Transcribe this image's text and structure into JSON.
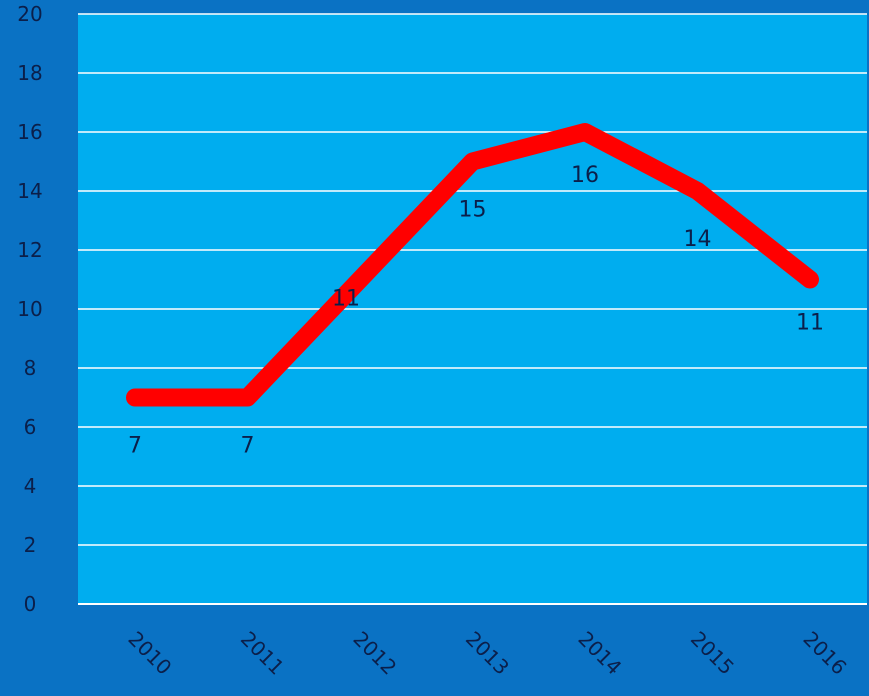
{
  "chart_data": {
    "type": "line",
    "title": "",
    "xlabel": "",
    "ylabel": "",
    "categories": [
      "2010",
      "2011",
      "2012",
      "2013",
      "2014",
      "2015",
      "2016"
    ],
    "series": [
      {
        "values": [
          7,
          7,
          11,
          15,
          16,
          14,
          11
        ]
      }
    ],
    "data_labels": [
      "7",
      "7",
      "11",
      "15",
      "16",
      "14",
      "11"
    ],
    "y_ticks": [
      "0",
      "2",
      "4",
      "6",
      "8",
      "10",
      "12",
      "14",
      "16",
      "18",
      "20"
    ],
    "ylim": [
      0,
      20
    ],
    "grid": true,
    "legend": "none",
    "colors": {
      "background": "#0a72c4",
      "plot_area": "#00adef",
      "gridline": "#ffffff",
      "line": "#ff0000",
      "text": "#0b1f4a"
    }
  }
}
